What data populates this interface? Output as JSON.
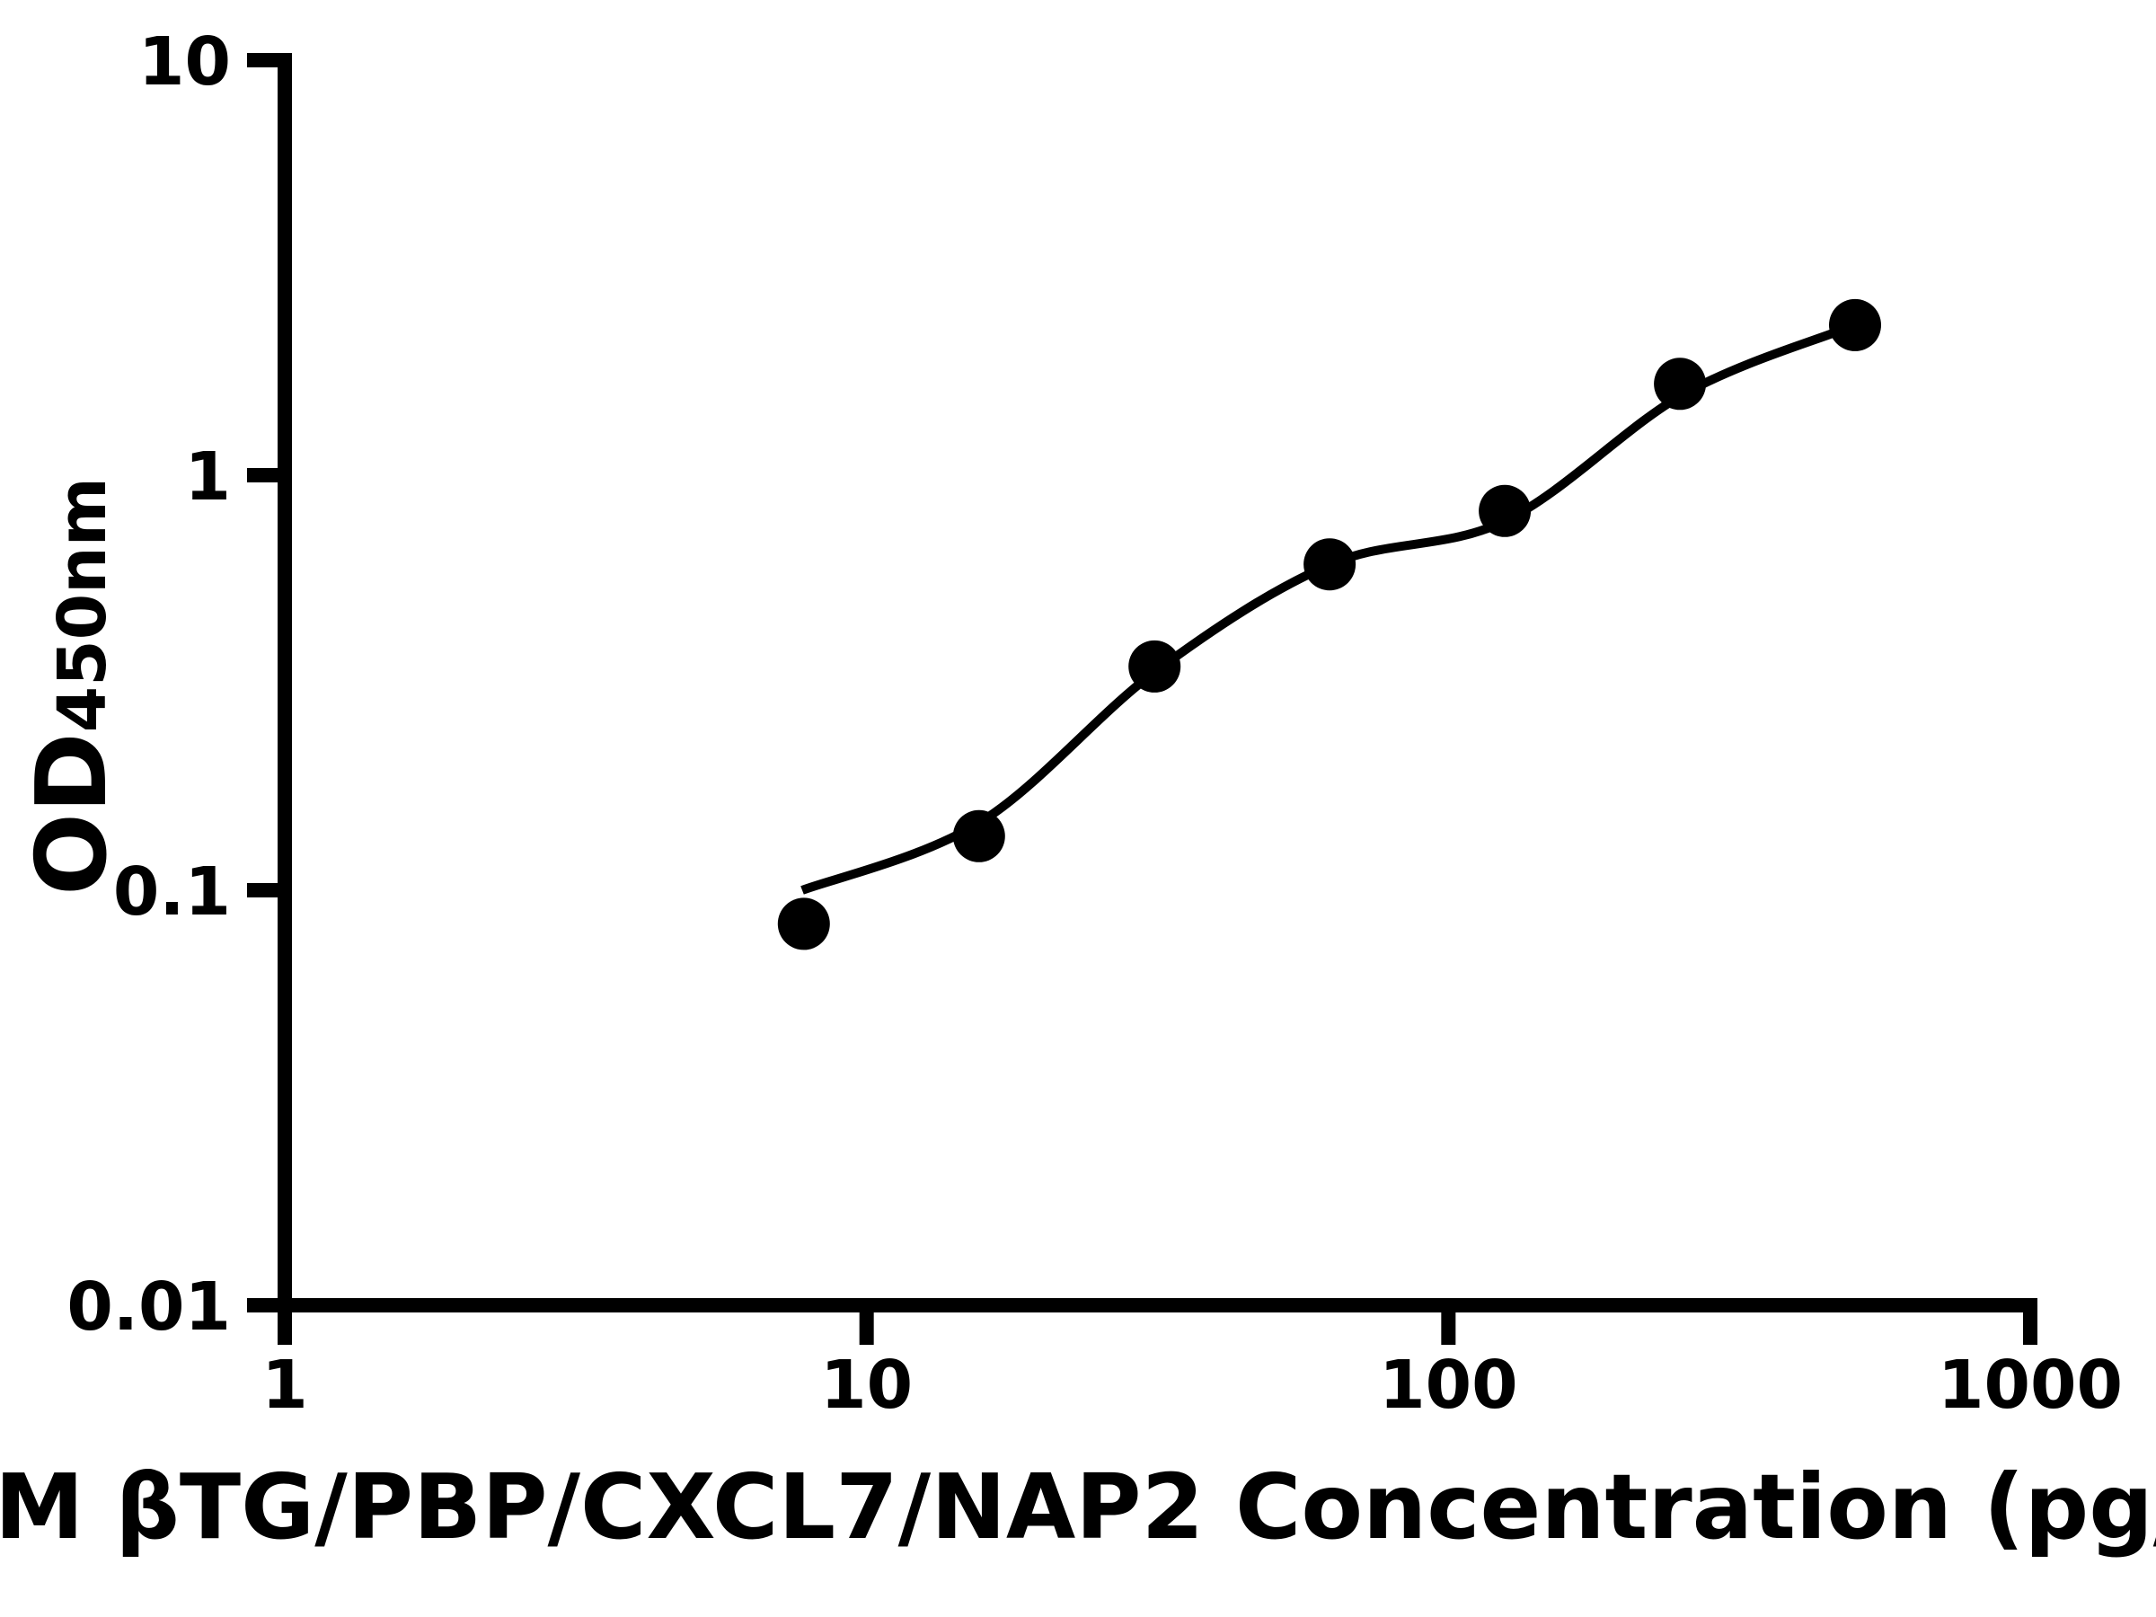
{
  "page": {
    "background_color": "#ffffff",
    "ink_color": "#000000"
  },
  "chart_data": {
    "type": "scatter",
    "title": "",
    "x_axis": {
      "label": "M βTG/PBP/CXCL7/NAP2 Concentration (pg/",
      "scale": "log",
      "range": [
        1,
        1000
      ],
      "tick_values": [
        1,
        10,
        100,
        1000
      ],
      "tick_labels": [
        "1",
        "10",
        "100",
        "1000"
      ],
      "minor_ticks": false,
      "grid": false
    },
    "y_axis": {
      "label": "OD",
      "label_subscript": "450nm",
      "scale": "log",
      "range": [
        0.01,
        10
      ],
      "tick_values": [
        10,
        1,
        0.1,
        0.01
      ],
      "tick_labels": [
        "10",
        "1",
        "0.1",
        "0.01"
      ],
      "minor_ticks": false,
      "grid": false
    },
    "series": [
      {
        "name": "standard-curve-points",
        "marker": "filled-circle",
        "color": "#000000",
        "points": [
          [
            7.8,
            0.083
          ],
          [
            15.6,
            0.135
          ],
          [
            31.25,
            0.346
          ],
          [
            62.5,
            0.61
          ],
          [
            125,
            0.82
          ],
          [
            250,
            1.66
          ],
          [
            500,
            2.3
          ]
        ]
      }
    ],
    "fit_curve": {
      "name": "fitted-standard-curve",
      "color": "#000000",
      "points": [
        [
          7.75,
          0.1
        ],
        [
          15.7,
          0.146
        ],
        [
          31.4,
          0.337
        ],
        [
          62.7,
          0.61
        ],
        [
          125,
          0.775
        ],
        [
          252,
          1.56
        ],
        [
          474,
          2.24
        ]
      ]
    }
  }
}
